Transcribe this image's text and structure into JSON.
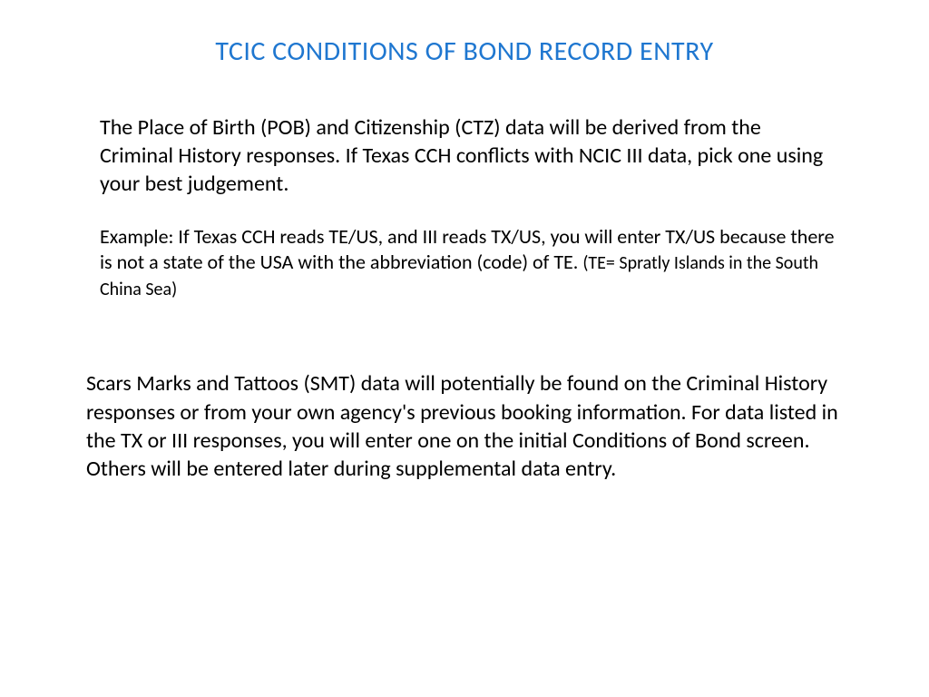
{
  "colors": {
    "title_color": "#1f77d0",
    "body_color": "#000000",
    "background_color": "#ffffff"
  },
  "typography": {
    "title_fontsize": 30,
    "body_fontsize": 24,
    "example_fontsize": 22,
    "small_fontsize": 20,
    "font_family": "Calibri"
  },
  "title": "TCIC CONDITIONS OF BOND RECORD ENTRY",
  "paragraph1": "The Place of Birth (POB) and Citizenship (CTZ) data will be derived from the Criminal History responses.  If Texas CCH conflicts with NCIC III data, pick one using your best judgement.",
  "paragraph2_main": "Example:  If Texas CCH reads TE/US, and III reads TX/US, you will enter TX/US because there is not a state of the USA with the abbreviation (code) of TE.  ",
  "paragraph2_small": "(TE= Spratly Islands in the South China Sea)",
  "paragraph3": "Scars Marks and Tattoos (SMT) data will potentially be found on the Criminal History responses or from your own agency's previous booking information.  For data listed in the TX or III responses, you will enter one on the initial Conditions of Bond screen. Others will be entered later during supplemental data entry."
}
